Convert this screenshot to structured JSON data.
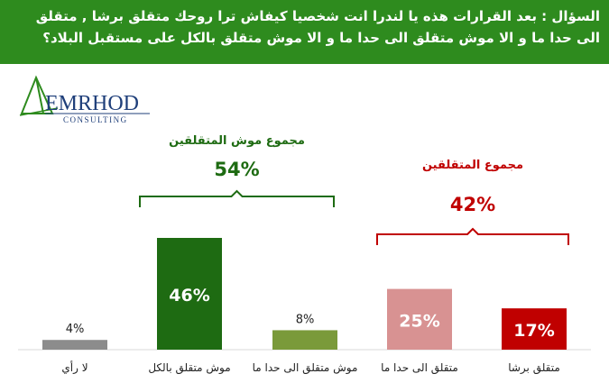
{
  "question": "السؤال : بعد القرارات هذه يا لندرا انت شخصيا كيفاش ترا روحك متقلق برشا , متقلق الى حدا ما و الا موش متقلق الى حدا ما و الا موش متقلق بالكل على مستقبل البلاد؟",
  "logo": {
    "name": "EMRHOD",
    "subtitle": "CONSULTING",
    "icon": "triangle-logo-icon"
  },
  "colors": {
    "header_bg": "#2e8b1e",
    "gray": "#8c8c8c",
    "dark_green": "#1e6b12",
    "olive_green": "#7a9a3a",
    "pink": "#d89292",
    "dark_red": "#c00000",
    "green_text": "#1e6b12",
    "red_text": "#c00000"
  },
  "chart_data": {
    "type": "bar",
    "categories": [
      "لا رأي",
      "موش متقلق بالكل",
      "موش متقلق الى حدا ما",
      "متقلق الى حدا ما",
      "متقلق برشا"
    ],
    "values": [
      4,
      46,
      8,
      25,
      17
    ],
    "value_labels": [
      "4%",
      "46%",
      "8%",
      "25%",
      "17%"
    ],
    "bar_colors": [
      "#8c8c8c",
      "#1e6b12",
      "#7a9a3a",
      "#d89292",
      "#c00000"
    ],
    "groups": [
      {
        "label": "مجموع موش المتقلقين",
        "total_label": "54%",
        "color": "#1e6b12",
        "categories": [
          1,
          2
        ]
      },
      {
        "label": "مجموع المتقلقين",
        "total_label": "42%",
        "color": "#c00000",
        "categories": [
          3,
          4
        ]
      }
    ],
    "title": "",
    "xlabel": "",
    "ylabel": "",
    "ylim": [
      0,
      50
    ],
    "grid": false,
    "legend": "none"
  }
}
